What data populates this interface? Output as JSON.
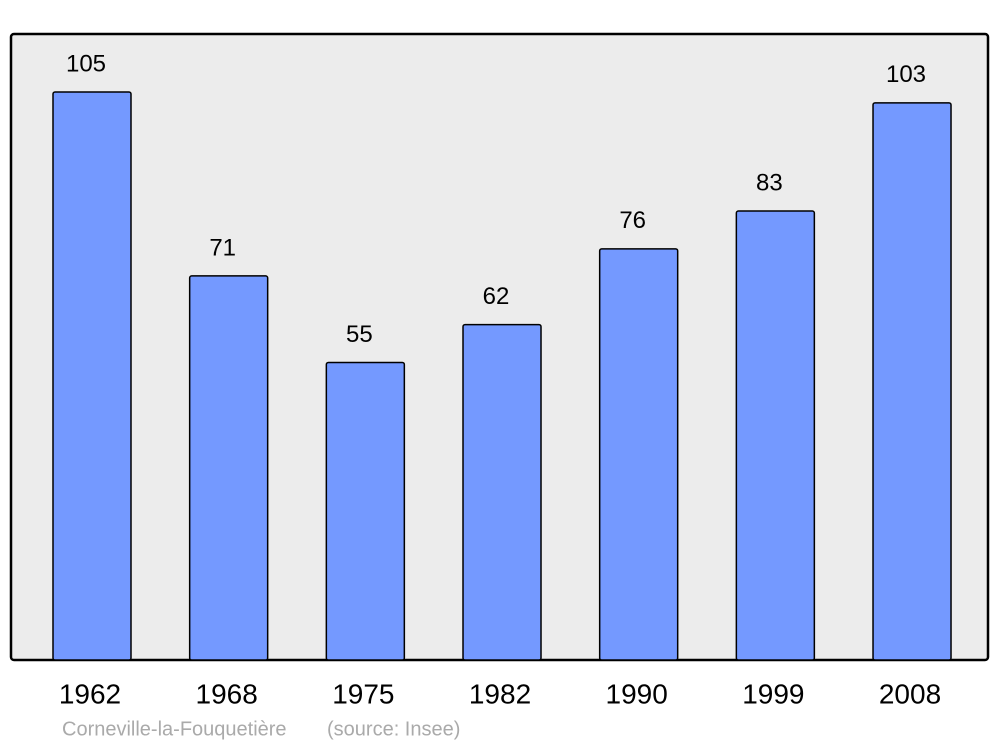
{
  "chart_data": {
    "type": "bar",
    "title": "Corneville-la-Fouquetière",
    "source": "(source: Insee)",
    "categories": [
      "1962",
      "1968",
      "1975",
      "1982",
      "1990",
      "1999",
      "2008"
    ],
    "values": [
      105,
      71,
      55,
      62,
      76,
      83,
      103
    ],
    "color": "#7499ff"
  }
}
